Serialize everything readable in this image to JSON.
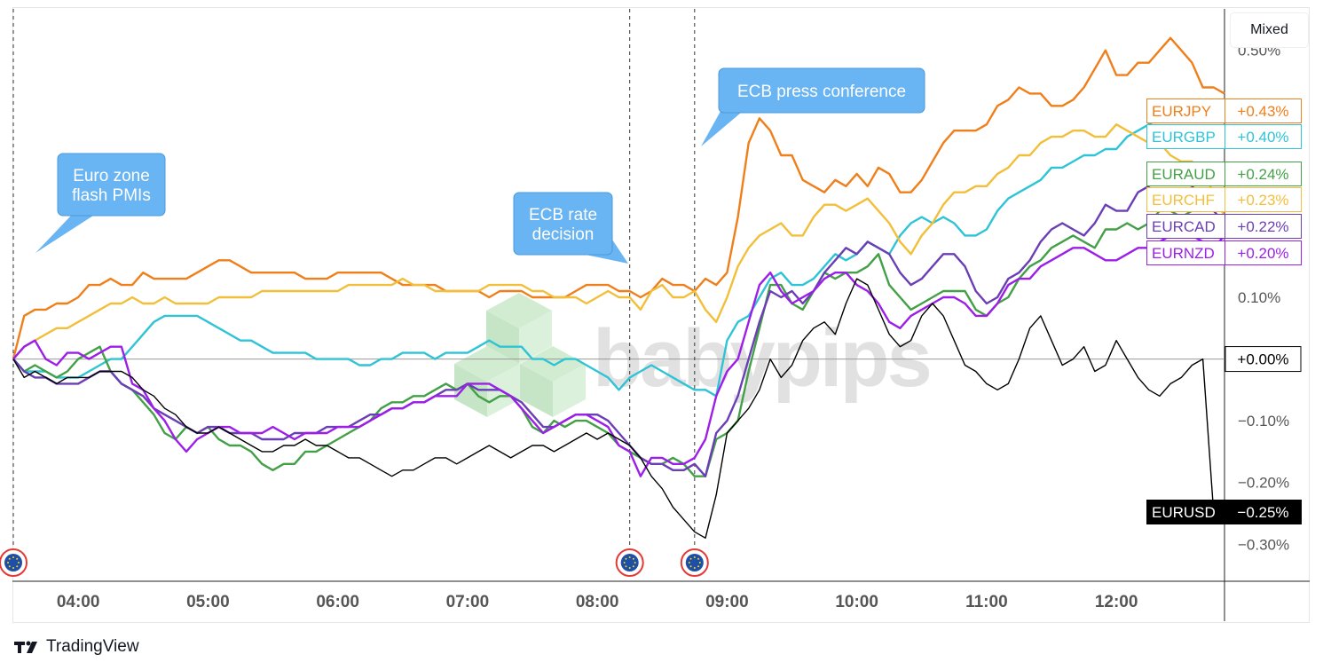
{
  "toolbar": {
    "scale_mode_label": "Mixed"
  },
  "footer": {
    "brand": "TradingView"
  },
  "watermark": "babypips",
  "callouts": [
    {
      "label_lines": [
        "Euro zone",
        "flash PMIs"
      ]
    },
    {
      "label_lines": [
        "ECB rate",
        "decision"
      ]
    },
    {
      "label_lines": [
        "ECB press conference"
      ]
    }
  ],
  "chart_data": {
    "type": "line",
    "xlabel": "",
    "ylabel": "",
    "x_tick_labels": [
      "04:00",
      "05:00",
      "06:00",
      "07:00",
      "08:00",
      "09:00",
      "10:00",
      "11:00",
      "12:00"
    ],
    "y_tick_labels": [
      "0.50%",
      "0.10%",
      "−0.10%",
      "−0.20%",
      "−0.30%"
    ],
    "y_ticks": [
      0.5,
      0.1,
      -0.1,
      -0.2,
      -0.3
    ],
    "ylim": [
      -0.36,
      0.56
    ],
    "xlim": [
      "03:30",
      "12:50"
    ],
    "event_markers": [
      {
        "time": "03:30",
        "icon": "eu-flag-icon"
      },
      {
        "time": "08:15",
        "icon": "eu-flag-icon"
      },
      {
        "time": "08:45",
        "icon": "eu-flag-icon"
      }
    ],
    "time_points": [
      "03:30",
      "03:35",
      "03:40",
      "03:45",
      "03:50",
      "03:55",
      "04:00",
      "04:05",
      "04:10",
      "04:15",
      "04:20",
      "04:25",
      "04:30",
      "04:35",
      "04:40",
      "04:45",
      "04:50",
      "04:55",
      "05:00",
      "05:05",
      "05:10",
      "05:15",
      "05:20",
      "05:25",
      "05:30",
      "05:35",
      "05:40",
      "05:45",
      "05:50",
      "05:55",
      "06:00",
      "06:05",
      "06:10",
      "06:15",
      "06:20",
      "06:25",
      "06:30",
      "06:35",
      "06:40",
      "06:45",
      "06:50",
      "06:55",
      "07:00",
      "07:05",
      "07:10",
      "07:15",
      "07:20",
      "07:25",
      "07:30",
      "07:35",
      "07:40",
      "07:45",
      "07:50",
      "07:55",
      "08:00",
      "08:05",
      "08:10",
      "08:15",
      "08:20",
      "08:25",
      "08:30",
      "08:35",
      "08:40",
      "08:45",
      "08:50",
      "08:55",
      "09:00",
      "09:05",
      "09:10",
      "09:15",
      "09:20",
      "09:25",
      "09:30",
      "09:35",
      "09:40",
      "09:45",
      "09:50",
      "09:55",
      "10:00",
      "10:05",
      "10:10",
      "10:15",
      "10:20",
      "10:25",
      "10:30",
      "10:35",
      "10:40",
      "10:45",
      "10:50",
      "10:55",
      "11:00",
      "11:05",
      "11:10",
      "11:15",
      "11:20",
      "11:25",
      "11:30",
      "11:35",
      "11:40",
      "11:45",
      "11:50",
      "11:55",
      "12:00",
      "12:05",
      "12:10",
      "12:15",
      "12:20",
      "12:25",
      "12:30",
      "12:35",
      "12:40",
      "12:45",
      "12:50"
    ],
    "series": [
      {
        "name": "EURJPY",
        "color": "#ef7f1a",
        "last_value": "+0.43%",
        "values": [
          0.0,
          0.07,
          0.08,
          0.08,
          0.09,
          0.09,
          0.1,
          0.12,
          0.12,
          0.13,
          0.12,
          0.12,
          0.14,
          0.13,
          0.13,
          0.13,
          0.13,
          0.14,
          0.15,
          0.16,
          0.16,
          0.15,
          0.14,
          0.14,
          0.14,
          0.14,
          0.14,
          0.13,
          0.13,
          0.13,
          0.14,
          0.14,
          0.14,
          0.14,
          0.14,
          0.13,
          0.12,
          0.12,
          0.12,
          0.12,
          0.11,
          0.11,
          0.11,
          0.11,
          0.1,
          0.11,
          0.11,
          0.11,
          0.1,
          0.1,
          0.1,
          0.1,
          0.11,
          0.12,
          0.12,
          0.12,
          0.11,
          0.11,
          0.1,
          0.11,
          0.13,
          0.12,
          0.12,
          0.11,
          0.13,
          0.12,
          0.14,
          0.23,
          0.35,
          0.39,
          0.37,
          0.33,
          0.33,
          0.29,
          0.28,
          0.27,
          0.29,
          0.28,
          0.3,
          0.28,
          0.31,
          0.3,
          0.27,
          0.27,
          0.29,
          0.32,
          0.35,
          0.37,
          0.37,
          0.37,
          0.38,
          0.41,
          0.42,
          0.44,
          0.43,
          0.43,
          0.41,
          0.41,
          0.42,
          0.44,
          0.47,
          0.5,
          0.46,
          0.46,
          0.48,
          0.48,
          0.5,
          0.52,
          0.5,
          0.48,
          0.44,
          0.44,
          0.43
        ]
      },
      {
        "name": "EURGBP",
        "color": "#2ec4d6",
        "last_value": "+0.40%",
        "values": [
          0.0,
          -0.02,
          -0.02,
          -0.02,
          -0.03,
          -0.03,
          -0.03,
          -0.02,
          -0.01,
          0.0,
          0.0,
          0.02,
          0.04,
          0.06,
          0.07,
          0.07,
          0.07,
          0.07,
          0.06,
          0.05,
          0.04,
          0.03,
          0.03,
          0.02,
          0.01,
          0.01,
          0.01,
          0.01,
          0.0,
          0.0,
          0.0,
          0.0,
          -0.01,
          -0.01,
          0.0,
          0.0,
          0.01,
          0.01,
          0.01,
          0.0,
          0.01,
          0.01,
          0.01,
          0.02,
          0.03,
          0.02,
          0.02,
          0.02,
          0.0,
          0.0,
          -0.01,
          0.0,
          0.0,
          -0.01,
          -0.02,
          -0.03,
          -0.05,
          -0.03,
          -0.02,
          -0.01,
          -0.02,
          -0.03,
          -0.04,
          -0.05,
          -0.05,
          -0.06,
          0.03,
          0.06,
          0.07,
          0.1,
          0.13,
          0.14,
          0.12,
          0.12,
          0.13,
          0.15,
          0.17,
          0.16,
          0.17,
          0.19,
          0.18,
          0.17,
          0.2,
          0.22,
          0.23,
          0.22,
          0.23,
          0.22,
          0.2,
          0.2,
          0.21,
          0.24,
          0.26,
          0.27,
          0.28,
          0.29,
          0.31,
          0.31,
          0.32,
          0.33,
          0.33,
          0.34,
          0.34,
          0.36,
          0.37,
          0.38,
          0.39,
          0.4,
          0.4,
          0.39,
          0.39,
          0.4,
          0.4
        ]
      },
      {
        "name": "EURAUD",
        "color": "#43a047",
        "last_value": "+0.24%",
        "values": [
          0.0,
          -0.02,
          -0.01,
          -0.02,
          -0.03,
          -0.02,
          0.0,
          0.01,
          0.02,
          -0.02,
          -0.04,
          -0.05,
          -0.07,
          -0.09,
          -0.12,
          -0.13,
          -0.11,
          -0.12,
          -0.11,
          -0.13,
          -0.14,
          -0.14,
          -0.15,
          -0.17,
          -0.18,
          -0.17,
          -0.17,
          -0.15,
          -0.15,
          -0.14,
          -0.13,
          -0.12,
          -0.11,
          -0.1,
          -0.08,
          -0.07,
          -0.07,
          -0.06,
          -0.06,
          -0.05,
          -0.04,
          -0.05,
          -0.04,
          -0.06,
          -0.07,
          -0.06,
          -0.06,
          -0.08,
          -0.11,
          -0.12,
          -0.1,
          -0.11,
          -0.1,
          -0.1,
          -0.11,
          -0.12,
          -0.14,
          -0.15,
          -0.16,
          -0.17,
          -0.17,
          -0.16,
          -0.17,
          -0.19,
          -0.19,
          -0.13,
          -0.12,
          -0.1,
          -0.02,
          0.05,
          0.12,
          0.12,
          0.09,
          0.08,
          0.11,
          0.14,
          0.13,
          0.14,
          0.14,
          0.15,
          0.17,
          0.12,
          0.1,
          0.08,
          0.09,
          0.1,
          0.11,
          0.11,
          0.11,
          0.08,
          0.07,
          0.09,
          0.1,
          0.13,
          0.15,
          0.16,
          0.18,
          0.19,
          0.2,
          0.19,
          0.18,
          0.21,
          0.21,
          0.22,
          0.21,
          0.22,
          0.24,
          0.24,
          0.23,
          0.24,
          0.25,
          0.24,
          0.24
        ]
      },
      {
        "name": "EURCHF",
        "color": "#f2bf3a",
        "last_value": "+0.23%",
        "values": [
          0.0,
          0.02,
          0.03,
          0.04,
          0.05,
          0.05,
          0.06,
          0.07,
          0.08,
          0.09,
          0.09,
          0.1,
          0.09,
          0.09,
          0.1,
          0.09,
          0.09,
          0.09,
          0.09,
          0.1,
          0.1,
          0.1,
          0.1,
          0.11,
          0.11,
          0.11,
          0.11,
          0.11,
          0.11,
          0.11,
          0.11,
          0.12,
          0.12,
          0.12,
          0.12,
          0.12,
          0.13,
          0.12,
          0.12,
          0.11,
          0.11,
          0.11,
          0.11,
          0.11,
          0.12,
          0.12,
          0.12,
          0.12,
          0.11,
          0.11,
          0.1,
          0.1,
          0.1,
          0.09,
          0.1,
          0.11,
          0.1,
          0.1,
          0.08,
          0.11,
          0.12,
          0.1,
          0.1,
          0.11,
          0.08,
          0.06,
          0.1,
          0.15,
          0.18,
          0.2,
          0.21,
          0.22,
          0.2,
          0.2,
          0.23,
          0.25,
          0.25,
          0.24,
          0.25,
          0.26,
          0.24,
          0.22,
          0.19,
          0.17,
          0.2,
          0.22,
          0.25,
          0.27,
          0.27,
          0.28,
          0.28,
          0.3,
          0.31,
          0.33,
          0.33,
          0.35,
          0.36,
          0.36,
          0.37,
          0.37,
          0.36,
          0.36,
          0.38,
          0.37,
          0.36,
          0.35,
          0.35,
          0.33,
          0.32,
          0.32,
          0.3,
          0.27,
          0.23
        ]
      },
      {
        "name": "EURCAD",
        "color": "#6a3fb5",
        "last_value": "+0.22%",
        "values": [
          0.0,
          -0.02,
          -0.03,
          -0.03,
          -0.04,
          -0.04,
          -0.04,
          -0.03,
          -0.02,
          -0.02,
          -0.04,
          -0.05,
          -0.06,
          -0.08,
          -0.09,
          -0.1,
          -0.11,
          -0.12,
          -0.11,
          -0.11,
          -0.12,
          -0.12,
          -0.12,
          -0.13,
          -0.13,
          -0.13,
          -0.12,
          -0.12,
          -0.12,
          -0.11,
          -0.11,
          -0.11,
          -0.1,
          -0.09,
          -0.09,
          -0.08,
          -0.08,
          -0.07,
          -0.07,
          -0.06,
          -0.05,
          -0.05,
          -0.04,
          -0.05,
          -0.05,
          -0.05,
          -0.06,
          -0.07,
          -0.09,
          -0.11,
          -0.11,
          -0.1,
          -0.09,
          -0.09,
          -0.09,
          -0.1,
          -0.12,
          -0.14,
          -0.16,
          -0.17,
          -0.17,
          -0.18,
          -0.18,
          -0.17,
          -0.19,
          -0.12,
          -0.1,
          -0.06,
          0.0,
          0.06,
          0.11,
          0.1,
          0.11,
          0.09,
          0.11,
          0.14,
          0.16,
          0.18,
          0.17,
          0.19,
          0.18,
          0.17,
          0.14,
          0.12,
          0.13,
          0.15,
          0.17,
          0.17,
          0.15,
          0.11,
          0.09,
          0.1,
          0.13,
          0.14,
          0.16,
          0.19,
          0.21,
          0.22,
          0.21,
          0.2,
          0.22,
          0.25,
          0.24,
          0.24,
          0.27,
          0.28,
          0.29,
          0.31,
          0.29,
          0.28,
          0.26,
          0.24,
          0.22
        ]
      },
      {
        "name": "EURNZD",
        "color": "#9c1ee8",
        "last_value": "+0.20%",
        "values": [
          0.0,
          0.02,
          0.03,
          0.0,
          -0.01,
          0.01,
          0.01,
          0.0,
          0.01,
          0.02,
          0.02,
          -0.04,
          -0.05,
          -0.08,
          -0.1,
          -0.13,
          -0.15,
          -0.13,
          -0.12,
          -0.11,
          -0.11,
          -0.12,
          -0.12,
          -0.12,
          -0.11,
          -0.12,
          -0.13,
          -0.12,
          -0.12,
          -0.12,
          -0.11,
          -0.11,
          -0.11,
          -0.1,
          -0.09,
          -0.08,
          -0.08,
          -0.07,
          -0.07,
          -0.06,
          -0.06,
          -0.06,
          -0.04,
          -0.04,
          -0.04,
          -0.05,
          -0.06,
          -0.08,
          -0.1,
          -0.12,
          -0.11,
          -0.1,
          -0.09,
          -0.09,
          -0.1,
          -0.11,
          -0.14,
          -0.15,
          -0.19,
          -0.16,
          -0.16,
          -0.17,
          -0.17,
          -0.16,
          -0.13,
          -0.06,
          -0.02,
          0.0,
          0.06,
          0.12,
          0.14,
          0.11,
          0.09,
          0.1,
          0.11,
          0.13,
          0.14,
          0.14,
          0.12,
          0.11,
          0.09,
          0.06,
          0.05,
          0.07,
          0.08,
          0.09,
          0.1,
          0.1,
          0.09,
          0.07,
          0.07,
          0.09,
          0.12,
          0.13,
          0.13,
          0.15,
          0.16,
          0.17,
          0.18,
          0.18,
          0.17,
          0.16,
          0.16,
          0.17,
          0.18,
          0.18,
          0.19,
          0.2,
          0.2,
          0.2,
          0.19,
          0.18,
          0.2
        ]
      },
      {
        "name": "EURUSD",
        "color": "#000000",
        "last_value": "−0.25%",
        "values": [
          0.0,
          -0.03,
          -0.02,
          -0.03,
          -0.04,
          -0.03,
          -0.03,
          -0.03,
          -0.02,
          -0.02,
          -0.02,
          -0.03,
          -0.05,
          -0.06,
          -0.08,
          -0.09,
          -0.11,
          -0.12,
          -0.12,
          -0.11,
          -0.12,
          -0.13,
          -0.14,
          -0.15,
          -0.15,
          -0.14,
          -0.14,
          -0.13,
          -0.14,
          -0.14,
          -0.15,
          -0.16,
          -0.16,
          -0.17,
          -0.18,
          -0.19,
          -0.18,
          -0.18,
          -0.17,
          -0.16,
          -0.16,
          -0.17,
          -0.16,
          -0.15,
          -0.14,
          -0.15,
          -0.16,
          -0.15,
          -0.14,
          -0.14,
          -0.15,
          -0.14,
          -0.13,
          -0.12,
          -0.13,
          -0.12,
          -0.13,
          -0.14,
          -0.16,
          -0.19,
          -0.21,
          -0.24,
          -0.26,
          -0.28,
          -0.29,
          -0.22,
          -0.12,
          -0.1,
          -0.08,
          -0.05,
          0.0,
          -0.03,
          -0.01,
          0.03,
          0.05,
          0.06,
          0.04,
          0.09,
          0.13,
          0.12,
          0.08,
          0.04,
          0.02,
          0.03,
          0.07,
          0.09,
          0.07,
          0.03,
          -0.01,
          -0.02,
          -0.04,
          -0.05,
          -0.04,
          0.0,
          0.05,
          0.07,
          0.03,
          -0.01,
          0.0,
          0.02,
          -0.02,
          -0.01,
          0.03,
          0.0,
          -0.03,
          -0.05,
          -0.06,
          -0.04,
          -0.03,
          -0.01,
          0.0,
          -0.25,
          -0.25
        ]
      }
    ],
    "baseline": {
      "value": 0.0,
      "label": "+0.00%"
    },
    "grid": false,
    "legend": "price labels on right axis"
  }
}
